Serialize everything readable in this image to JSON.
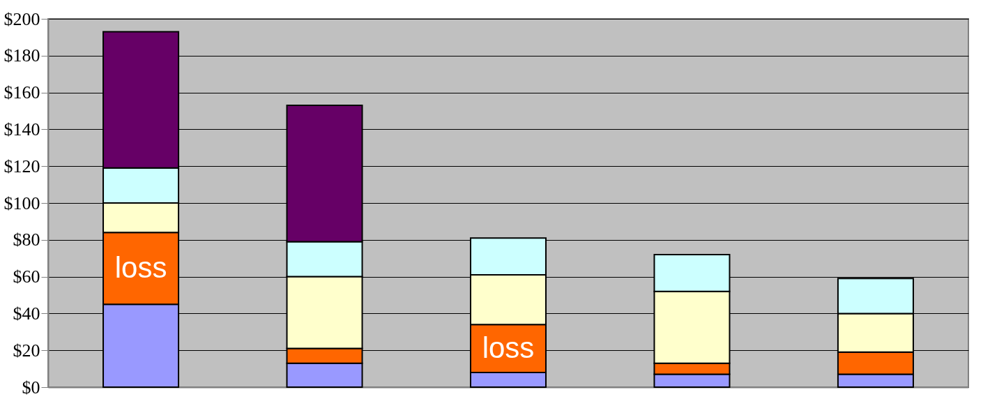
{
  "chart_data": {
    "type": "bar",
    "stacked": true,
    "categories": [
      null,
      null,
      null,
      null,
      null
    ],
    "series": [
      {
        "color": "#9999ff",
        "values": [
          45,
          13,
          8,
          7,
          7
        ]
      },
      {
        "color": "#ff6600",
        "values": [
          39,
          8,
          26,
          6,
          12
        ],
        "value_labels": [
          "loss",
          null,
          "loss",
          null,
          null
        ]
      },
      {
        "color": "#ffffcc",
        "values": [
          16,
          39,
          27,
          39,
          21
        ]
      },
      {
        "color": "#ccffff",
        "values": [
          19,
          19,
          20,
          20,
          19
        ]
      },
      {
        "color": "#660066",
        "values": [
          74,
          74,
          null,
          null,
          null
        ]
      }
    ],
    "ylim": [
      0,
      200
    ],
    "yticks": [
      {
        "value": 0,
        "label": "$0"
      },
      {
        "value": 20,
        "label": "$20"
      },
      {
        "value": 40,
        "label": "$40"
      },
      {
        "value": 60,
        "label": "$60"
      },
      {
        "value": 80,
        "label": "$80"
      },
      {
        "value": 100,
        "label": "$100"
      },
      {
        "value": 120,
        "label": "$120"
      },
      {
        "value": 140,
        "label": "$140"
      },
      {
        "value": 160,
        "label": "$160"
      },
      {
        "value": 180,
        "label": "$180"
      },
      {
        "value": 200,
        "label": "$200"
      }
    ],
    "grid": "y",
    "tick_labels": "y",
    "legend": false
  }
}
